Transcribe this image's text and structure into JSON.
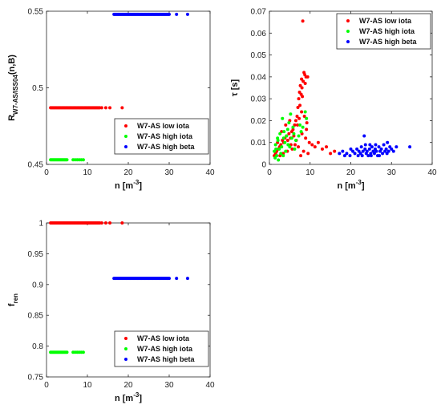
{
  "colors": {
    "low_iota": "#ff0000",
    "high_iota": "#00ff00",
    "high_beta": "#0000ff",
    "axis": "#262626",
    "grid": "#e6e6e6"
  },
  "chart_data": [
    {
      "type": "scatter",
      "id": "R",
      "xlabel": "n [m",
      "xlabel_sup": "-3",
      "xlabel_tail": "]",
      "ylabel": "R",
      "ylabel_sub": "W7-AS/ISS04",
      "ylabel_tail": "(n,B)",
      "xlim": [
        0,
        40
      ],
      "ylim": [
        0.45,
        0.55
      ],
      "xticks": [
        0,
        10,
        20,
        30,
        40
      ],
      "yticks": [
        0.45,
        0.5,
        0.55
      ],
      "ytick_labels": [
        "0.45",
        "0.5",
        "0.55"
      ],
      "grid": false,
      "legend": "bottom-right",
      "series": [
        {
          "name": "W7-AS low iota",
          "color": "#ff0000",
          "y_const": 0.487,
          "x_range": [
            1,
            13
          ],
          "step": 0.25,
          "extra_x": [
            13.5,
            14.5,
            15.5,
            18.5
          ]
        },
        {
          "name": "W7-AS high iota",
          "color": "#00ff00",
          "y_const": 0.453,
          "x_range": [
            1,
            5
          ],
          "step": 0.25,
          "extra_x": [
            6.5,
            7,
            7.5,
            8,
            8.5,
            9
          ]
        },
        {
          "name": "W7-AS high beta",
          "color": "#0000ff",
          "y_const": 0.548,
          "x_range": [
            16.5,
            30
          ],
          "step": 0.25,
          "extra_x": [
            31.8,
            34.5
          ]
        }
      ]
    },
    {
      "type": "scatter",
      "id": "tau",
      "xlabel": "n [m",
      "xlabel_sup": "-3",
      "xlabel_tail": "]",
      "ylabel": "τ [s]",
      "xlim": [
        0,
        40
      ],
      "ylim": [
        0,
        0.07
      ],
      "xticks": [
        0,
        10,
        20,
        30,
        40
      ],
      "yticks": [
        0,
        0.01,
        0.02,
        0.03,
        0.04,
        0.05,
        0.06,
        0.07
      ],
      "ytick_labels": [
        "0",
        "0.01",
        "0.02",
        "0.03",
        "0.04",
        "0.05",
        "0.06",
        "0.07"
      ],
      "grid": false,
      "legend": "top-right",
      "series": [
        {
          "name": "W7-AS low iota",
          "color": "#ff0000",
          "points": [
            [
              8.2,
              0.0655
            ],
            [
              8.5,
              0.042
            ],
            [
              8.7,
              0.041
            ],
            [
              9.0,
              0.04
            ],
            [
              7.9,
              0.039
            ],
            [
              9.4,
              0.04
            ],
            [
              8.3,
              0.038
            ],
            [
              7.6,
              0.036
            ],
            [
              8.0,
              0.035
            ],
            [
              8.8,
              0.037
            ],
            [
              7.4,
              0.033
            ],
            [
              7.8,
              0.032
            ],
            [
              8.1,
              0.031
            ],
            [
              7.2,
              0.03
            ],
            [
              7.0,
              0.026
            ],
            [
              7.5,
              0.027
            ],
            [
              6.8,
              0.022
            ],
            [
              7.3,
              0.021
            ],
            [
              6.5,
              0.02
            ],
            [
              8.6,
              0.022
            ],
            [
              9.2,
              0.019
            ],
            [
              6.2,
              0.018
            ],
            [
              5.8,
              0.016
            ],
            [
              5.5,
              0.015
            ],
            [
              6.0,
              0.013
            ],
            [
              5.2,
              0.012
            ],
            [
              4.8,
              0.014
            ],
            [
              4.5,
              0.011
            ],
            [
              4.2,
              0.013
            ],
            [
              3.8,
              0.012
            ],
            [
              3.5,
              0.01
            ],
            [
              3.2,
              0.011
            ],
            [
              2.8,
              0.009
            ],
            [
              2.5,
              0.008
            ],
            [
              2.2,
              0.007
            ],
            [
              1.8,
              0.006
            ],
            [
              1.5,
              0.005
            ],
            [
              1.2,
              0.004
            ],
            [
              2.0,
              0.01
            ],
            [
              3.0,
              0.015
            ],
            [
              4.0,
              0.018
            ],
            [
              5.0,
              0.02
            ],
            [
              6.3,
              0.009
            ],
            [
              7.1,
              0.008
            ],
            [
              8.9,
              0.012
            ],
            [
              9.8,
              0.01
            ],
            [
              10.5,
              0.009
            ],
            [
              11.2,
              0.008
            ],
            [
              12.0,
              0.01
            ],
            [
              13.0,
              0.007
            ],
            [
              14.0,
              0.008
            ],
            [
              15.0,
              0.005
            ],
            [
              16.0,
              0.006
            ],
            [
              9.5,
              0.005
            ],
            [
              8.4,
              0.006
            ],
            [
              7.7,
              0.004
            ],
            [
              5.6,
              0.007
            ],
            [
              4.4,
              0.006
            ],
            [
              3.4,
              0.005
            ],
            [
              2.6,
              0.004
            ],
            [
              6.6,
              0.011
            ],
            [
              5.3,
              0.009
            ],
            [
              8.0,
              0.014
            ],
            [
              9.1,
              0.016
            ],
            [
              7.9,
              0.024
            ],
            [
              6.9,
              0.018
            ]
          ]
        },
        {
          "name": "W7-AS high iota",
          "color": "#00ff00",
          "points": [
            [
              8.8,
              0.024
            ],
            [
              9.1,
              0.021
            ],
            [
              5.2,
              0.023
            ],
            [
              4.8,
              0.019
            ],
            [
              3.2,
              0.021
            ],
            [
              2.6,
              0.014
            ],
            [
              3.5,
              0.012
            ],
            [
              2.1,
              0.011
            ],
            [
              1.5,
              0.009
            ],
            [
              1.2,
              0.006
            ],
            [
              1.8,
              0.004
            ],
            [
              2.4,
              0.007
            ],
            [
              3.0,
              0.008
            ],
            [
              3.8,
              0.01
            ],
            [
              4.2,
              0.013
            ],
            [
              4.5,
              0.016
            ],
            [
              5.5,
              0.012
            ],
            [
              6.0,
              0.014
            ],
            [
              6.5,
              0.011
            ],
            [
              7.2,
              0.013
            ],
            [
              7.8,
              0.015
            ],
            [
              5.0,
              0.008
            ],
            [
              4.0,
              0.006
            ],
            [
              2.8,
              0.005
            ],
            [
              1.4,
              0.003
            ],
            [
              2.2,
              0.002
            ],
            [
              3.4,
              0.004
            ],
            [
              6.2,
              0.007
            ],
            [
              5.8,
              0.017
            ],
            [
              7.5,
              0.018
            ],
            [
              8.2,
              0.017
            ],
            [
              1.6,
              0.007
            ],
            [
              2.0,
              0.012
            ],
            [
              3.6,
              0.015
            ],
            [
              4.6,
              0.009
            ]
          ]
        },
        {
          "name": "W7-AS high beta",
          "color": "#0000ff",
          "points": [
            [
              17.2,
              0.005
            ],
            [
              18.0,
              0.006
            ],
            [
              19.0,
              0.005
            ],
            [
              19.8,
              0.004
            ],
            [
              20.5,
              0.006
            ],
            [
              21.0,
              0.005
            ],
            [
              21.5,
              0.007
            ],
            [
              22.0,
              0.006
            ],
            [
              22.4,
              0.005
            ],
            [
              22.8,
              0.004
            ],
            [
              23.0,
              0.006
            ],
            [
              23.3,
              0.013
            ],
            [
              23.5,
              0.007
            ],
            [
              23.8,
              0.005
            ],
            [
              24.0,
              0.006
            ],
            [
              24.3,
              0.004
            ],
            [
              24.6,
              0.007
            ],
            [
              24.9,
              0.005
            ],
            [
              25.2,
              0.008
            ],
            [
              25.5,
              0.006
            ],
            [
              25.8,
              0.005
            ],
            [
              26.0,
              0.007
            ],
            [
              26.3,
              0.006
            ],
            [
              26.6,
              0.004
            ],
            [
              26.9,
              0.008
            ],
            [
              27.2,
              0.006
            ],
            [
              27.5,
              0.007
            ],
            [
              27.8,
              0.005
            ],
            [
              28.1,
              0.009
            ],
            [
              28.4,
              0.006
            ],
            [
              28.7,
              0.007
            ],
            [
              29.0,
              0.01
            ],
            [
              29.3,
              0.006
            ],
            [
              29.6,
              0.008
            ],
            [
              30.0,
              0.007
            ],
            [
              30.5,
              0.006
            ],
            [
              31.2,
              0.008
            ],
            [
              34.5,
              0.008
            ],
            [
              18.5,
              0.004
            ],
            [
              21.8,
              0.004
            ],
            [
              23.6,
              0.009
            ],
            [
              24.7,
              0.009
            ],
            [
              26.1,
              0.009
            ],
            [
              27.0,
              0.004
            ],
            [
              28.9,
              0.005
            ],
            [
              20.0,
              0.007
            ],
            [
              22.6,
              0.008
            ],
            [
              25.0,
              0.004
            ]
          ]
        }
      ]
    },
    {
      "type": "scatter",
      "id": "fren",
      "xlabel": "n [m",
      "xlabel_sup": "-3",
      "xlabel_tail": "]",
      "ylabel": "f",
      "ylabel_sub": "ren",
      "xlim": [
        0,
        40
      ],
      "ylim": [
        0.75,
        1.0
      ],
      "xticks": [
        0,
        10,
        20,
        30,
        40
      ],
      "yticks": [
        0.75,
        0.8,
        0.85,
        0.9,
        0.95,
        1.0
      ],
      "ytick_labels": [
        "0.75",
        "0.8",
        "0.85",
        "0.9",
        "0.95",
        "1"
      ],
      "grid": false,
      "legend": "bottom-right",
      "series": [
        {
          "name": "W7-AS low iota",
          "color": "#ff0000",
          "y_const": 1.0,
          "x_range": [
            1,
            13
          ],
          "step": 0.25,
          "extra_x": [
            13.5,
            14.5,
            15.5,
            18.5
          ]
        },
        {
          "name": "W7-AS high iota",
          "color": "#00ff00",
          "y_const": 0.79,
          "x_range": [
            1,
            5
          ],
          "step": 0.25,
          "extra_x": [
            6.5,
            7,
            7.5,
            8,
            8.5,
            9
          ]
        },
        {
          "name": "W7-AS high beta",
          "color": "#0000ff",
          "y_const": 0.91,
          "x_range": [
            16.5,
            30
          ],
          "step": 0.25,
          "extra_x": [
            31.8,
            34.5
          ]
        }
      ]
    }
  ]
}
